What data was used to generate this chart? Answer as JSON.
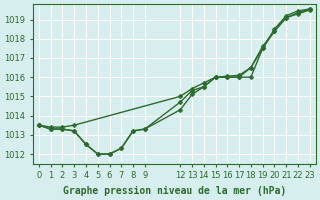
{
  "title": "Graphe pression niveau de la mer (hPa)",
  "bg_color": "#d6eeee",
  "grid_color": "#ffffff",
  "line_color": "#2d6a2d",
  "ylim": [
    1011.5,
    1019.8
  ],
  "yticks": [
    1012,
    1013,
    1014,
    1015,
    1016,
    1017,
    1018,
    1019
  ],
  "xticks": [
    0,
    1,
    2,
    3,
    4,
    5,
    6,
    7,
    8,
    9,
    12,
    13,
    14,
    15,
    16,
    17,
    18,
    19,
    20,
    21,
    22,
    23
  ],
  "xtick_labels": [
    "0",
    "1",
    "2",
    "3",
    "4",
    "5",
    "6",
    "7",
    "8",
    "9",
    "12",
    "13",
    "14",
    "15",
    "16",
    "17",
    "18",
    "19",
    "20",
    "21",
    "22",
    "23"
  ],
  "marker_size": 2.5,
  "linewidth": 1.0,
  "font_color": "#2d6a2d",
  "xlabel_fontsize": 7,
  "ytick_fontsize": 6,
  "xtick_fontsize": 6,
  "line1_x": [
    0,
    1,
    2,
    3,
    4,
    5,
    6,
    7,
    8,
    9,
    12,
    13,
    14,
    15,
    16,
    17,
    18,
    19,
    20,
    21,
    22,
    23
  ],
  "line1_y": [
    1013.5,
    1013.3,
    1013.3,
    1013.2,
    1012.5,
    1012.0,
    1012.0,
    1012.3,
    1013.2,
    1013.3,
    1014.7,
    1015.3,
    1015.5,
    1016.0,
    1016.0,
    1016.0,
    1016.0,
    1017.5,
    1018.4,
    1019.1,
    1019.3,
    1019.5
  ],
  "line2_x": [
    0,
    1,
    2,
    3,
    12,
    13,
    14,
    15,
    16,
    17,
    18,
    19,
    20,
    21,
    22,
    23
  ],
  "line2_y": [
    1013.5,
    1013.4,
    1013.4,
    1013.5,
    1015.0,
    1015.4,
    1015.7,
    1016.0,
    1016.05,
    1016.1,
    1016.5,
    1017.5,
    1018.5,
    1019.2,
    1019.45,
    1019.55
  ],
  "line3_x": [
    0,
    1,
    2,
    3,
    4,
    5,
    6,
    7,
    8,
    9,
    12,
    13,
    14,
    15,
    16,
    17,
    18,
    19,
    20,
    21,
    22,
    23
  ],
  "line3_y": [
    1013.5,
    1013.3,
    1013.3,
    1013.2,
    1012.5,
    1012.0,
    1012.0,
    1012.3,
    1013.2,
    1013.3,
    1014.3,
    1015.1,
    1015.5,
    1016.0,
    1016.0,
    1016.0,
    1016.5,
    1017.6,
    1018.4,
    1019.1,
    1019.35,
    1019.55
  ]
}
